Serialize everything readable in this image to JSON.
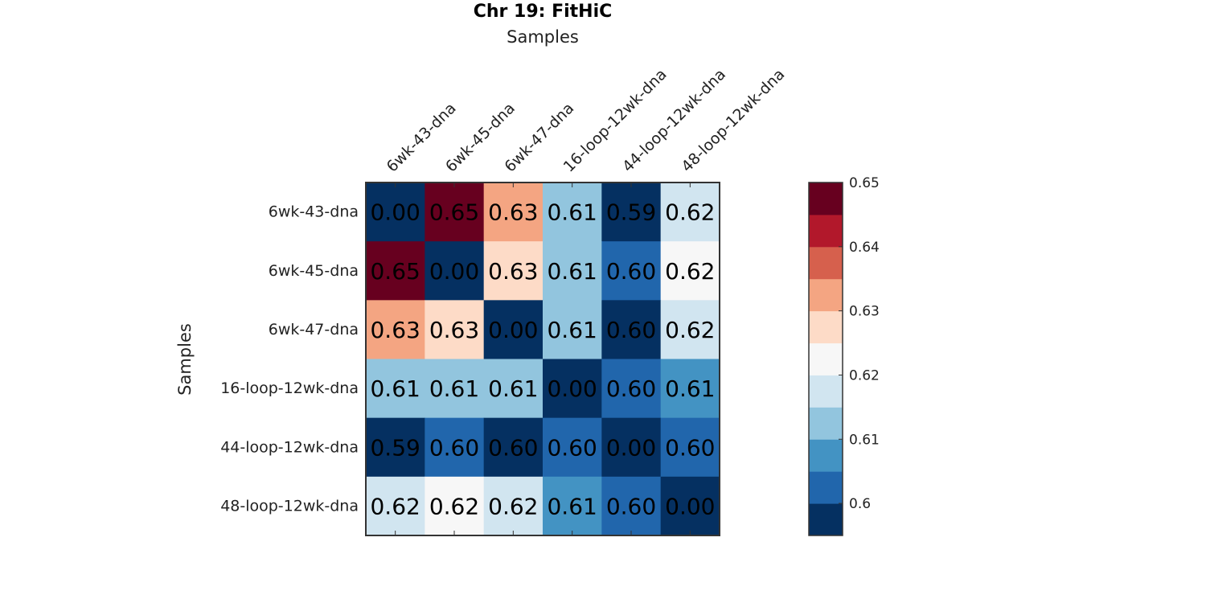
{
  "chart_data": {
    "type": "heatmap",
    "title": "Chr 19: FitHiC",
    "xlabel": "Samples",
    "ylabel": "Samples",
    "x_categories": [
      "6wk-43-dna",
      "6wk-45-dna",
      "6wk-47-dna",
      "16-loop-12wk-dna",
      "44-loop-12wk-dna",
      "48-loop-12wk-dna"
    ],
    "y_categories": [
      "6wk-43-dna",
      "6wk-45-dna",
      "6wk-47-dna",
      "16-loop-12wk-dna",
      "44-loop-12wk-dna",
      "48-loop-12wk-dna"
    ],
    "values": [
      [
        0.0,
        0.652,
        0.632,
        0.613,
        0.594,
        0.618
      ],
      [
        0.652,
        0.0,
        0.628,
        0.613,
        0.6,
        0.622
      ],
      [
        0.632,
        0.628,
        0.0,
        0.613,
        0.598,
        0.615
      ],
      [
        0.613,
        0.613,
        0.613,
        0.0,
        0.6,
        0.609
      ],
      [
        0.594,
        0.6,
        0.598,
        0.6,
        0.0,
        0.602
      ],
      [
        0.618,
        0.622,
        0.615,
        0.609,
        0.602,
        0.0
      ]
    ],
    "cell_labels": [
      [
        "0.00",
        "0.65",
        "0.63",
        "0.61",
        "0.59",
        "0.62"
      ],
      [
        "0.65",
        "0.00",
        "0.63",
        "0.61",
        "0.60",
        "0.62"
      ],
      [
        "0.63",
        "0.63",
        "0.00",
        "0.61",
        "0.60",
        "0.62"
      ],
      [
        "0.61",
        "0.61",
        "0.61",
        "0.00",
        "0.60",
        "0.61"
      ],
      [
        "0.59",
        "0.60",
        "0.60",
        "0.60",
        "0.00",
        "0.60"
      ],
      [
        "0.62",
        "0.62",
        "0.62",
        "0.61",
        "0.60",
        "0.00"
      ]
    ],
    "colorbar": {
      "range": [
        0.595,
        0.65
      ],
      "ticks": [
        0.6,
        0.61,
        0.62,
        0.63,
        0.64,
        0.65
      ],
      "tick_labels": [
        "0.6",
        "0.61",
        "0.62",
        "0.63",
        "0.64",
        "0.65"
      ],
      "colors": [
        "#053061",
        "#2166ac",
        "#4393c3",
        "#92c5de",
        "#d1e5f0",
        "#f7f7f7",
        "#fddbc7",
        "#f4a582",
        "#d6604d",
        "#b2182b",
        "#67001f"
      ]
    },
    "x_ticks_position": "top",
    "grid": false,
    "legend": "colorbar-right"
  }
}
